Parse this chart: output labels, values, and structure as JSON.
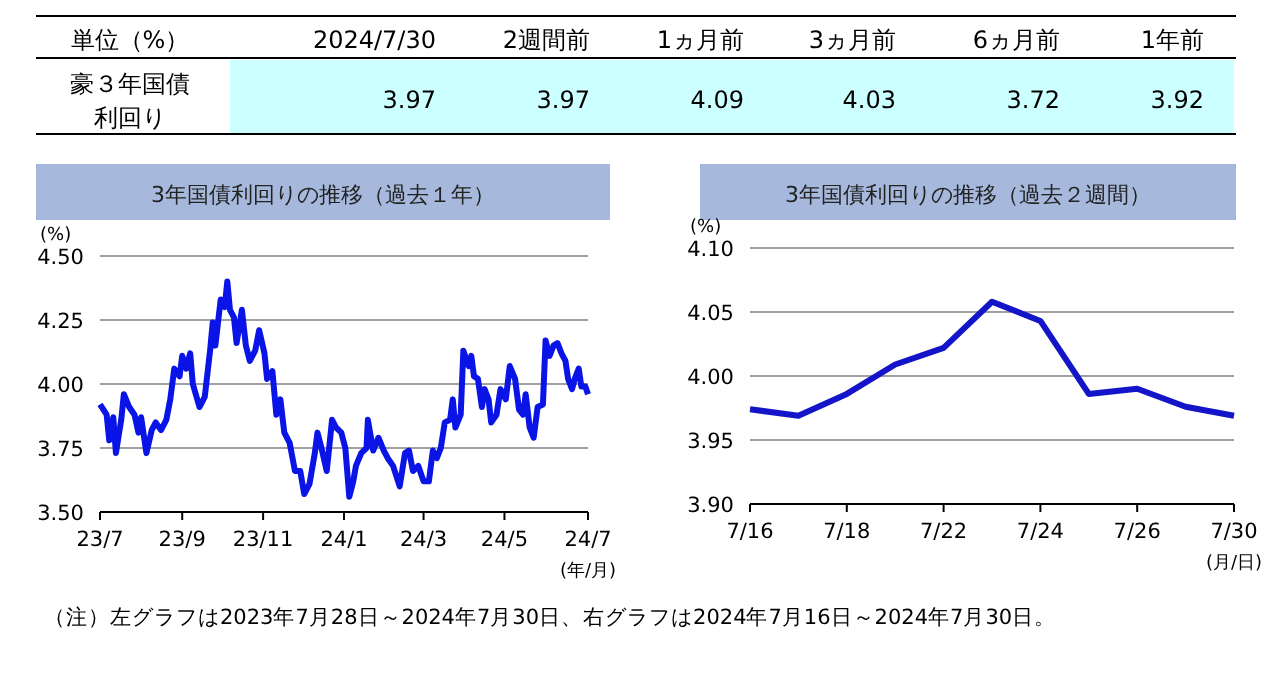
{
  "chart_data": [
    {
      "type": "other",
      "title": "単位（%）",
      "categories": [
        "2024/7/30",
        "2週間前",
        "1ヵ月前",
        "3ヵ月前",
        "6ヵ月前",
        "1年前"
      ],
      "series": [
        {
          "name": "豪３年国債利回り",
          "values": [
            3.97,
            3.97,
            4.09,
            4.03,
            3.72,
            3.92
          ]
        }
      ],
      "data_labels": true
    },
    {
      "type": "line",
      "title": "3年国債利回りの推移（過去１年）",
      "xlabel": "(年/月)",
      "ylabel": "(%)",
      "x": [
        "2023-07-28",
        "2023-08-02",
        "2023-08-04",
        "2023-08-07",
        "2023-08-09",
        "2023-08-13",
        "2023-08-15",
        "2023-08-19",
        "2023-08-23",
        "2023-08-26",
        "2023-08-28",
        "2023-09-01",
        "2023-09-05",
        "2023-09-08",
        "2023-09-12",
        "2023-09-16",
        "2023-09-19",
        "2023-09-22",
        "2023-09-26",
        "2023-09-28",
        "2023-10-01",
        "2023-10-04",
        "2023-10-06",
        "2023-10-11",
        "2023-10-15",
        "2023-10-19",
        "2023-10-21",
        "2023-10-23",
        "2023-10-27",
        "2023-10-30",
        "2023-11-01",
        "2023-11-03",
        "2023-11-06",
        "2023-11-08",
        "2023-11-12",
        "2023-11-15",
        "2023-11-18",
        "2023-11-22",
        "2023-11-25",
        "2023-11-29",
        "2023-12-01",
        "2023-12-05",
        "2023-12-08",
        "2023-12-11",
        "2023-12-14",
        "2023-12-18",
        "2023-12-22",
        "2023-12-26",
        "2023-12-29",
        "2024-01-02",
        "2024-01-06",
        "2024-01-08",
        "2024-01-11",
        "2024-01-15",
        "2024-01-19",
        "2024-01-22",
        "2024-01-26",
        "2024-01-29",
        "2024-02-01",
        "2024-02-04",
        "2024-02-06",
        "2024-02-10",
        "2024-02-14",
        "2024-02-15",
        "2024-02-19",
        "2024-02-23",
        "2024-02-27",
        "2024-03-01",
        "2024-03-05",
        "2024-03-10",
        "2024-03-14",
        "2024-03-17",
        "2024-03-20",
        "2024-03-24",
        "2024-03-28",
        "2024-04-01",
        "2024-04-04",
        "2024-04-07",
        "2024-04-10",
        "2024-04-13",
        "2024-04-17",
        "2024-04-19",
        "2024-04-21",
        "2024-04-25",
        "2024-04-27",
        "2024-05-01",
        "2024-05-03",
        "2024-05-05",
        "2024-05-08",
        "2024-05-11",
        "2024-05-13",
        "2024-05-16",
        "2024-05-18",
        "2024-05-22",
        "2024-05-25",
        "2024-05-29",
        "2024-06-01",
        "2024-06-05",
        "2024-06-08",
        "2024-06-11",
        "2024-06-13",
        "2024-06-16",
        "2024-06-19",
        "2024-06-22",
        "2024-06-26",
        "2024-06-28",
        "2024-07-01",
        "2024-07-04",
        "2024-07-07",
        "2024-07-10",
        "2024-07-13",
        "2024-07-15",
        "2024-07-18",
        "2024-07-20",
        "2024-07-23",
        "2024-07-25",
        "2024-07-28",
        "2024-07-30"
      ],
      "series": [
        {
          "color": "#0a14e6",
          "values": [
            3.92,
            3.88,
            3.78,
            3.87,
            3.73,
            3.86,
            3.96,
            3.91,
            3.88,
            3.81,
            3.87,
            3.73,
            3.82,
            3.85,
            3.82,
            3.86,
            3.94,
            4.06,
            4.03,
            4.11,
            4.06,
            4.12,
            4.0,
            3.91,
            3.95,
            4.13,
            4.24,
            4.15,
            4.33,
            4.3,
            4.4,
            4.29,
            4.26,
            4.16,
            4.29,
            4.15,
            4.09,
            4.13,
            4.21,
            4.12,
            4.02,
            4.05,
            3.88,
            3.94,
            3.81,
            3.77,
            3.66,
            3.66,
            3.57,
            3.61,
            3.73,
            3.81,
            3.75,
            3.66,
            3.86,
            3.83,
            3.81,
            3.75,
            3.56,
            3.62,
            3.68,
            3.73,
            3.75,
            3.86,
            3.74,
            3.79,
            3.74,
            3.71,
            3.68,
            3.6,
            3.73,
            3.74,
            3.66,
            3.68,
            3.62,
            3.62,
            3.74,
            3.71,
            3.75,
            3.85,
            3.86,
            3.94,
            3.83,
            3.88,
            4.13,
            4.07,
            4.11,
            4.03,
            4.02,
            3.91,
            3.98,
            3.94,
            3.85,
            3.88,
            3.98,
            3.94,
            4.07,
            4.02,
            3.9,
            3.88,
            3.96,
            3.83,
            3.79,
            3.91,
            3.92,
            4.17,
            4.11,
            4.15,
            4.16,
            4.12,
            4.09,
            4.02,
            3.98,
            4.02,
            4.06,
            3.99,
            3.99,
            3.96
          ]
        }
      ],
      "xlim": [
        "2023-07-28",
        "2024-07-30"
      ],
      "xticks": [
        {
          "value": "2023-07-28",
          "label": "23/7"
        },
        {
          "value": "2023-09-28",
          "label": "23/9"
        },
        {
          "value": "2023-11-28",
          "label": "23/11"
        },
        {
          "value": "2024-01-28",
          "label": "24/1"
        },
        {
          "value": "2024-03-28",
          "label": "24/3"
        },
        {
          "value": "2024-05-28",
          "label": "24/5"
        },
        {
          "value": "2024-07-30",
          "label": "24/7"
        }
      ],
      "ylim": [
        3.5,
        4.5
      ],
      "yticks": [
        {
          "value": 3.5,
          "label": "3.50"
        },
        {
          "value": 3.75,
          "label": "3.75"
        },
        {
          "value": 4.0,
          "label": "4.00"
        },
        {
          "value": 4.25,
          "label": "4.25"
        },
        {
          "value": 4.5,
          "label": "4.50"
        }
      ],
      "grid": "y"
    },
    {
      "type": "line",
      "title": "3年国債利回りの推移（過去２週間）",
      "xlabel": "(月/日)",
      "ylabel": "(%)",
      "categories": [
        "7/16",
        null,
        "7/18",
        null,
        "7/22",
        null,
        "7/24",
        null,
        "7/26",
        null,
        "7/30"
      ],
      "series": [
        {
          "color": "#1414c8",
          "values": [
            3.974,
            3.969,
            3.986,
            4.009,
            4.022,
            4.058,
            4.043,
            3.986,
            3.99,
            3.976,
            3.969
          ]
        }
      ],
      "ylim": [
        3.9,
        4.1
      ],
      "yticks": [
        {
          "value": 3.9,
          "label": "3.90"
        },
        {
          "value": 3.95,
          "label": "3.95"
        },
        {
          "value": 4.0,
          "label": "4.00"
        },
        {
          "value": 4.05,
          "label": "4.05"
        },
        {
          "value": 4.1,
          "label": "4.10"
        }
      ],
      "grid": "y",
      "annotations": [
        "（注）左グラフは2023年7月28日～2024年7月30日、右グラフは2024年7月16日～2024年7月30日。"
      ]
    }
  ]
}
